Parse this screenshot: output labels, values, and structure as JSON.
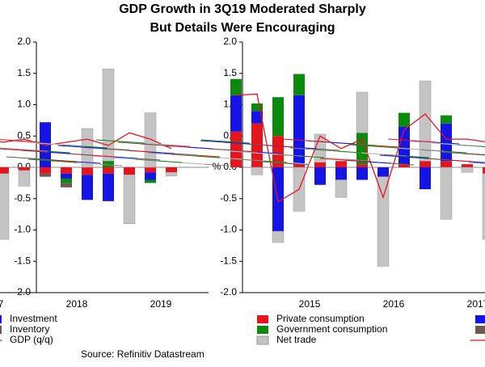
{
  "chart_data": {
    "type": "bar",
    "title": "GDP Growth in 3Q19 Moderated Sharply",
    "subtitle": "But Details Were Encouraging",
    "y_label": "%",
    "source": "Source: Refinitiv Datastream",
    "categories": [
      null,
      null,
      null,
      "2015",
      null,
      null,
      null,
      "2016",
      null,
      null,
      null,
      "2017",
      null,
      null,
      null,
      "2018",
      null,
      null,
      null,
      "2019",
      null
    ],
    "ylim": [
      -2,
      2
    ],
    "yticks": [
      {
        "value": -2,
        "label": "-2.0"
      },
      -1.5,
      {
        "value": -1,
        "label": "-1.0"
      },
      -0.5,
      {
        "value": 0,
        "label": "0.0"
      },
      0.5,
      {
        "value": 1,
        "label": "1.0"
      },
      1.5,
      {
        "value": 2,
        "label": "2.0"
      }
    ],
    "series": [
      {
        "name": "Private consumption",
        "color": "#e8141c",
        "values": [
          0.57,
          0.7,
          0.5,
          0.05,
          0.08,
          0.1,
          0.05,
          0,
          0.05,
          0.1,
          0.1,
          0.05,
          -0.1,
          -0.05,
          -0.1,
          -0.1,
          -0.12,
          -0.1,
          -0.12,
          -0.08,
          -0.08
        ]
      },
      {
        "name": "Government consumption",
        "color": "#0c8a0c",
        "values": [
          0.26,
          0.12,
          0.62,
          0.34,
          0,
          0,
          0.5,
          0,
          0.22,
          0,
          0.13,
          0,
          0,
          0,
          0,
          -0.07,
          0,
          0.1,
          0,
          -0.05,
          0
        ]
      },
      {
        "name": "Net trade",
        "color": "#c4c4c4",
        "values": [
          0,
          -0.12,
          -0.18,
          -0.7,
          0.45,
          -0.28,
          0.65,
          -1.43,
          0,
          1.28,
          -0.83,
          -0.08,
          -1.05,
          -0.25,
          0,
          0,
          0.62,
          1.47,
          -0.78,
          0.87,
          -0.06
        ]
      },
      {
        "name": "Investment",
        "color": "#1414e6",
        "values": [
          0.58,
          0.2,
          -1.02,
          1.1,
          -0.28,
          -0.2,
          -0.2,
          -0.15,
          0.6,
          -0.35,
          0.6,
          0,
          0,
          0,
          0.72,
          -0.08,
          -0.4,
          -0.44,
          0,
          -0.12,
          0
        ]
      },
      {
        "name": "Inventory",
        "color": "#6b5a4e",
        "values": [
          0,
          0,
          0,
          0,
          0,
          0,
          0,
          0,
          0,
          0,
          0,
          0,
          0,
          0,
          -0.05,
          -0.07,
          0,
          0,
          0,
          0,
          0
        ]
      },
      {
        "name": "GDP (q/q)",
        "color": "#e8141c",
        "type": "line",
        "values": [
          1.15,
          1.17,
          -0.55,
          -0.35,
          0.5,
          0.3,
          0.45,
          -0.48,
          0.6,
          0.85,
          0.45,
          0.45,
          0.4,
          0.45,
          0.35,
          0.4,
          0.45,
          0.35,
          0.55,
          0.45,
          0.3
        ]
      }
    ]
  }
}
